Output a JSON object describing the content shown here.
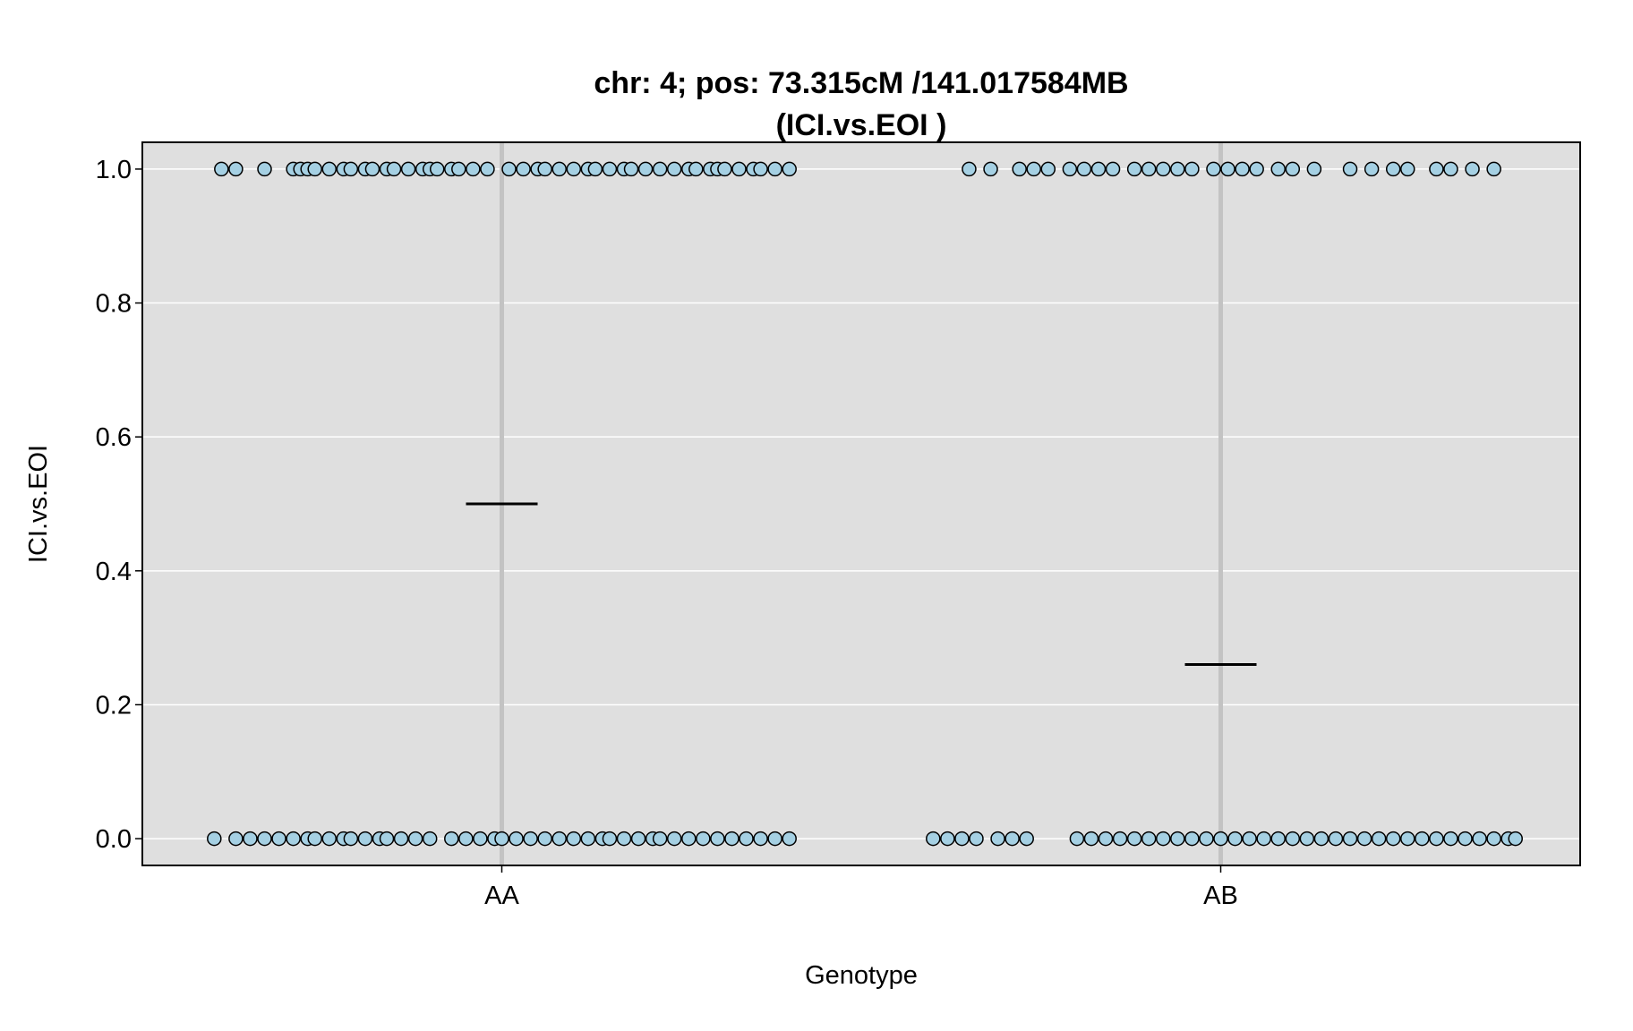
{
  "chart_data": {
    "type": "scatter",
    "title_line1": "chr: 4; pos: 73.315cM /141.017584MB",
    "title_line2": "(ICI.vs.EOI )",
    "xlabel": "Genotype",
    "ylabel": "ICI.vs.EOI",
    "categories": [
      "AA",
      "AB"
    ],
    "ylim": [
      -0.04,
      1.04
    ],
    "yticks": [
      "0.0",
      "0.2",
      "0.4",
      "0.6",
      "0.8",
      "1.0"
    ],
    "grid": true,
    "colors": {
      "panel": "#dfdfdf",
      "grid": "#ffffff",
      "category_line": "#c3c3c3",
      "point_fill": "#a5d0e3",
      "point_stroke": "#000000",
      "mean_line": "#000000"
    },
    "groups": [
      {
        "name": "AA",
        "mean": 0.5,
        "top_offsets": [
          -0.39,
          -0.37,
          -0.33,
          -0.29,
          -0.28,
          -0.27,
          -0.26,
          -0.24,
          -0.22,
          -0.21,
          -0.19,
          -0.18,
          -0.16,
          -0.15,
          -0.13,
          -0.11,
          -0.1,
          -0.09,
          -0.07,
          -0.06,
          -0.04,
          -0.02,
          0.01,
          0.03,
          0.05,
          0.06,
          0.08,
          0.1,
          0.12,
          0.13,
          0.15,
          0.17,
          0.18,
          0.2,
          0.22,
          0.24,
          0.26,
          0.27,
          0.29,
          0.3,
          0.31,
          0.33,
          0.35,
          0.36,
          0.38,
          0.4
        ],
        "bottom_offsets": [
          -0.4,
          -0.37,
          -0.35,
          -0.33,
          -0.31,
          -0.29,
          -0.27,
          -0.26,
          -0.24,
          -0.22,
          -0.21,
          -0.19,
          -0.17,
          -0.16,
          -0.14,
          -0.12,
          -0.1,
          -0.07,
          -0.05,
          -0.03,
          -0.01,
          0.0,
          0.02,
          0.04,
          0.06,
          0.08,
          0.1,
          0.12,
          0.14,
          0.15,
          0.17,
          0.19,
          0.21,
          0.22,
          0.24,
          0.26,
          0.28,
          0.3,
          0.32,
          0.34,
          0.36,
          0.38,
          0.4
        ]
      },
      {
        "name": "AB",
        "mean": 0.26,
        "top_offsets": [
          -0.35,
          -0.32,
          -0.28,
          -0.26,
          -0.24,
          -0.21,
          -0.19,
          -0.17,
          -0.15,
          -0.12,
          -0.1,
          -0.08,
          -0.06,
          -0.04,
          -0.01,
          0.01,
          0.03,
          0.05,
          0.08,
          0.1,
          0.13,
          0.18,
          0.21,
          0.24,
          0.26,
          0.3,
          0.32,
          0.35,
          0.38
        ],
        "bottom_offsets": [
          -0.4,
          -0.38,
          -0.36,
          -0.34,
          -0.31,
          -0.29,
          -0.27,
          -0.2,
          -0.18,
          -0.16,
          -0.14,
          -0.12,
          -0.1,
          -0.08,
          -0.06,
          -0.04,
          -0.02,
          0.0,
          0.02,
          0.04,
          0.06,
          0.08,
          0.1,
          0.12,
          0.14,
          0.16,
          0.18,
          0.2,
          0.22,
          0.24,
          0.26,
          0.28,
          0.3,
          0.32,
          0.34,
          0.36,
          0.38,
          0.4,
          0.41
        ]
      }
    ]
  }
}
